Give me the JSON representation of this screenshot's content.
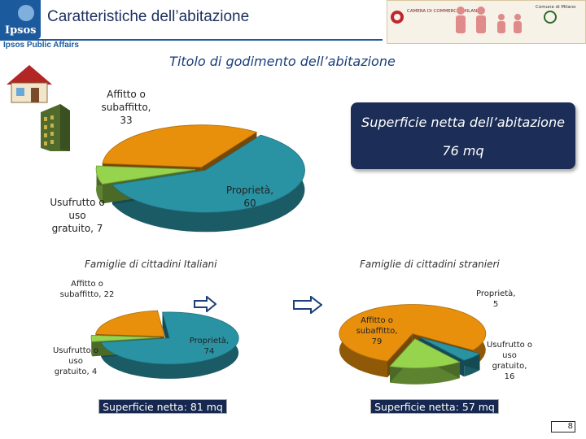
{
  "header": {
    "brand": "Ipsos",
    "title": "Caratteristiche dell’abitazione",
    "subtitle": "Ipsos Public Affairs",
    "sponsor_text": "CAMERA DI COMMERCIO MILANO",
    "sponsor_right": "Comune di Milano"
  },
  "page_number": "8",
  "colors": {
    "affitto": "#e8900c",
    "proprieta": "#2a93a3",
    "usufrutto": "#96d44e",
    "callout": "#1c2e57"
  },
  "callout": {
    "line1": "Superficie netta dell’abitazione",
    "line2": "76 mq"
  },
  "chart_data": [
    {
      "type": "pie",
      "title": "Titolo di godimento dell’abitazione",
      "categories": [
        "Affitto o subaffitto",
        "Proprietà",
        "Usufrutto o uso gratuito"
      ],
      "values": [
        33,
        60,
        7
      ],
      "labels": [
        "Affitto o subaffitto, 33",
        "Proprietà, 60",
        "Usufrutto o uso gratuito, 7"
      ]
    },
    {
      "type": "pie",
      "title": "Famiglie di cittadini Italiani",
      "categories": [
        "Affitto o subaffitto",
        "Proprietà",
        "Usufrutto o uso gratuito"
      ],
      "values": [
        22,
        74,
        4
      ],
      "labels": [
        "Affitto o subaffitto, 22",
        "Proprietà, 74",
        "Usufrutto o uso gratuito, 4"
      ],
      "note": "Superficie netta: 81 mq"
    },
    {
      "type": "pie",
      "title": "Famiglie di cittadini stranieri",
      "categories": [
        "Affitto o subaffitto",
        "Proprietà",
        "Usufrutto o uso gratuito"
      ],
      "values": [
        79,
        5,
        16
      ],
      "labels": [
        "Affitto o subaffitto, 79",
        "Proprietà, 5",
        "Usufrutto o uso gratuito, 16"
      ],
      "note": "Superficie netta: 57 mq"
    }
  ]
}
